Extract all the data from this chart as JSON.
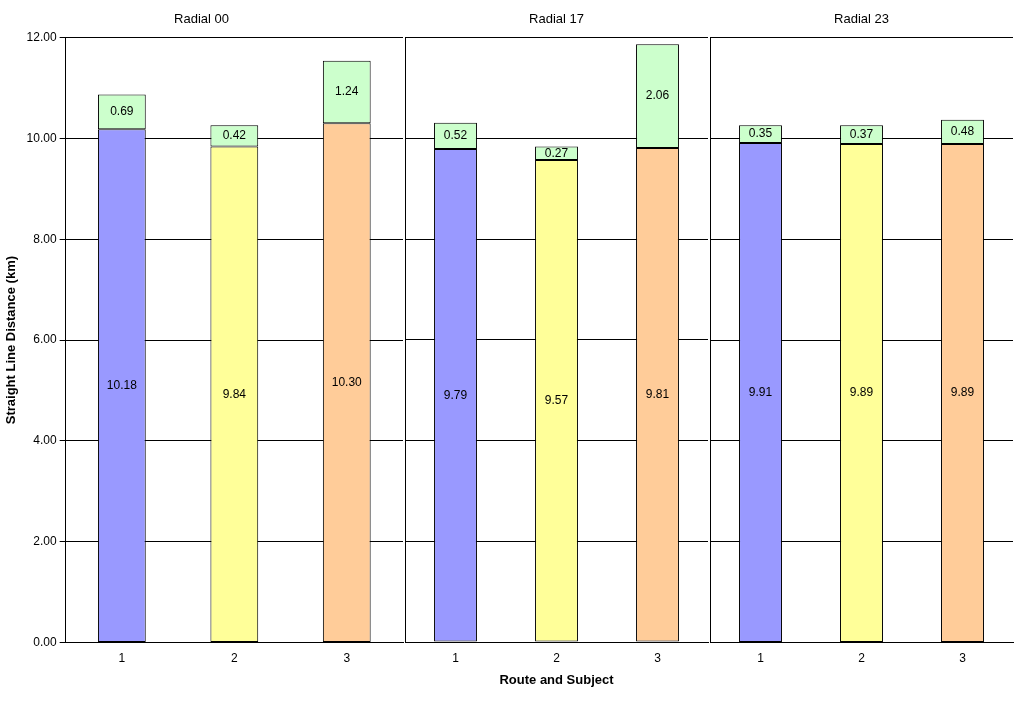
{
  "chart_data": [
    {
      "type": "bar",
      "title": "Radial 00",
      "ylabel": "Straight Line Distance (km)",
      "categories": [
        "1",
        "2",
        "3"
      ],
      "stacked": true,
      "grid": "y",
      "ylim": [
        0,
        12
      ],
      "yticks": [
        {
          "value": 0,
          "label": "0.00"
        },
        {
          "value": 2,
          "label": "2.00"
        },
        {
          "value": 4,
          "label": "4.00"
        },
        {
          "value": 6,
          "label": "6.00"
        },
        {
          "value": 8,
          "label": "8.00"
        },
        {
          "value": 10,
          "label": "10.00"
        },
        {
          "value": 12,
          "label": "12.00"
        }
      ],
      "series": [
        {
          "colors": [
            "#9999ff",
            "#ffff99",
            "#ffcc99"
          ],
          "values": [
            10.18,
            9.84,
            10.3
          ],
          "value_labels": [
            "10.18",
            "9.84",
            "10.30"
          ]
        },
        {
          "color": "#ccffcc",
          "values": [
            0.69,
            0.42,
            1.24
          ],
          "value_labels": [
            "0.69",
            "0.42",
            "1.24"
          ]
        }
      ]
    },
    {
      "type": "bar",
      "title": "Radial 17",
      "xlabel": "Route and Subject",
      "categories": [
        "1",
        "2",
        "3"
      ],
      "stacked": true,
      "grid": "y",
      "tick_labels": "x",
      "ylim": [
        0,
        12
      ],
      "yticks": [
        0,
        2,
        4,
        6,
        8,
        10,
        12
      ],
      "series": [
        {
          "colors": [
            "#9999ff",
            "#ffff99",
            "#ffcc99"
          ],
          "values": [
            9.79,
            9.57,
            9.81
          ],
          "value_labels": [
            "9.79",
            "9.57",
            "9.81"
          ]
        },
        {
          "color": "#ccffcc",
          "values": [
            0.52,
            0.27,
            2.06
          ],
          "value_labels": [
            "0.52",
            "0.27",
            "2.06"
          ]
        }
      ]
    },
    {
      "type": "bar",
      "title": "Radial 23",
      "categories": [
        "1",
        "2",
        "3"
      ],
      "stacked": true,
      "grid": "y",
      "tick_labels": "x",
      "ylim": [
        0,
        12
      ],
      "yticks": [
        0,
        2,
        4,
        6,
        8,
        10,
        12
      ],
      "series": [
        {
          "colors": [
            "#9999ff",
            "#ffff99",
            "#ffcc99"
          ],
          "values": [
            9.91,
            9.89,
            9.89
          ],
          "value_labels": [
            "9.91",
            "9.89",
            "9.89"
          ]
        },
        {
          "color": "#ccffcc",
          "values": [
            0.35,
            0.37,
            0.48
          ],
          "value_labels": [
            "0.35",
            "0.37",
            "0.48"
          ]
        }
      ]
    }
  ]
}
